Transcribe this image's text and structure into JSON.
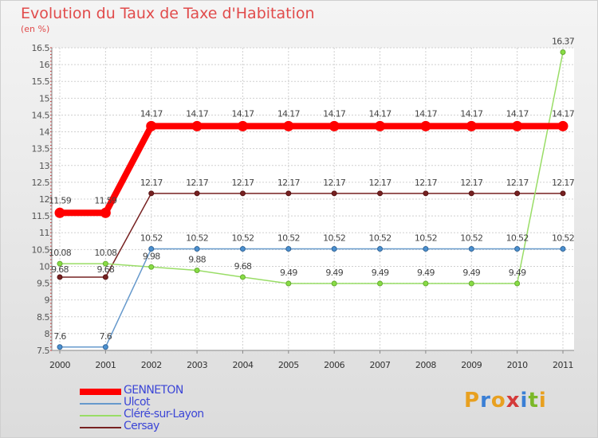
{
  "header": {
    "title": "Evolution du Taux de Taxe d'Habitation",
    "unit": "(en %)"
  },
  "logo": {
    "letters": [
      "P",
      "r",
      "o",
      "x",
      "i",
      "t",
      "i"
    ],
    "colors": [
      "#e8a020",
      "#3a7fd5",
      "#e8a020",
      "#d43a3a",
      "#3a7fd5",
      "#7ab828",
      "#e8a020"
    ]
  },
  "chart_data": {
    "type": "line",
    "title": "Evolution du Taux de Taxe d'Habitation",
    "ylabel": "(en %)",
    "xlabel": "",
    "x": [
      "2000",
      "2001",
      "2002",
      "2003",
      "2004",
      "2005",
      "2006",
      "2007",
      "2008",
      "2009",
      "2010",
      "2011"
    ],
    "ylim": [
      7.5,
      16.5
    ],
    "yticks": [
      "7.5",
      "8",
      "8.5",
      "9",
      "9.5",
      "10",
      "10.5",
      "11",
      "11.5",
      "12",
      "12.5",
      "13",
      "13.5",
      "14",
      "14.5",
      "15",
      "15.5",
      "16",
      "16.5"
    ],
    "grid": true,
    "legend_position": "bottom-left",
    "series": [
      {
        "name": "GENNETON",
        "color": "#ff0000",
        "values": [
          11.59,
          11.59,
          14.17,
          14.17,
          14.17,
          14.17,
          14.17,
          14.17,
          14.17,
          14.17,
          14.17,
          14.17
        ],
        "labels": [
          "11.59",
          "11.59",
          "14.17",
          "14.17",
          "14.17",
          "14.17",
          "14.17",
          "14.17",
          "14.17",
          "14.17",
          "14.17",
          "14.17"
        ]
      },
      {
        "name": "Ulcot",
        "color": "#6699cc",
        "values": [
          7.6,
          7.6,
          10.52,
          10.52,
          10.52,
          10.52,
          10.52,
          10.52,
          10.52,
          10.52,
          10.52,
          10.52
        ],
        "labels": [
          "7.6",
          "7.6",
          "10.52",
          "10.52",
          "10.52",
          "10.52",
          "10.52",
          "10.52",
          "10.52",
          "10.52",
          "10.52",
          "10.52"
        ]
      },
      {
        "name": "Cléré-sur-Layon",
        "color": "#99dd66",
        "values": [
          10.08,
          10.08,
          9.98,
          9.88,
          9.68,
          9.49,
          9.49,
          9.49,
          9.49,
          9.49,
          9.49,
          16.37
        ],
        "labels": [
          "10.08",
          "10.08",
          "9.98",
          "9.88",
          "9.68",
          "9.49",
          "9.49",
          "9.49",
          "9.49",
          "9.49",
          "9.49",
          "16.37"
        ]
      },
      {
        "name": "Cersay",
        "color": "#772222",
        "values": [
          9.68,
          9.68,
          12.17,
          12.17,
          12.17,
          12.17,
          12.17,
          12.17,
          12.17,
          12.17,
          12.17,
          12.17
        ],
        "labels": [
          "9.68",
          "9.68",
          "12.17",
          "12.17",
          "12.17",
          "12.17",
          "12.17",
          "12.17",
          "12.17",
          "12.17",
          "12.17",
          "12.17"
        ]
      }
    ]
  }
}
